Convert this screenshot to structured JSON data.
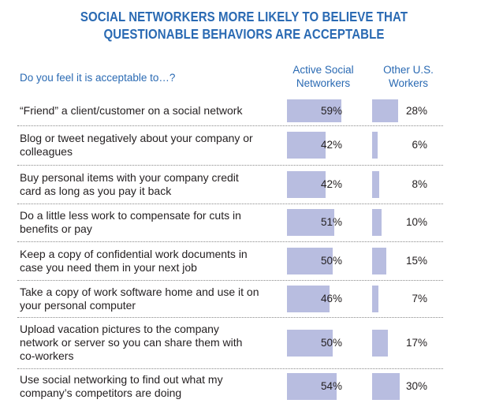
{
  "chart_data": {
    "type": "bar",
    "title": "SOCIAL NETWORKERS MORE LIKELY TO BELIEVE THAT QUESTIONABLE BEHAVIORS ARE ACCEPTABLE",
    "question_header": "Do you feel it is acceptable to…?",
    "series": [
      {
        "name": "Active Social Networkers",
        "values": [
          59,
          42,
          42,
          51,
          50,
          46,
          50,
          54
        ],
        "labels": [
          "59%",
          "42%",
          "42%",
          "51%",
          "50%",
          "46%",
          "50%",
          "54%"
        ]
      },
      {
        "name": "Other U.S. Workers",
        "values": [
          28,
          6,
          8,
          10,
          15,
          7,
          17,
          30
        ],
        "labels": [
          "28%",
          "6%",
          "8%",
          "10%",
          "15%",
          "7%",
          "17%",
          "30%"
        ]
      }
    ],
    "categories": [
      "“Friend” a client/customer on a social network",
      "Blog or tweet negatively about your company or colleagues",
      "Buy personal items with your company credit card as long as you pay it back",
      "Do a little less work to compensate for cuts in benefits or pay",
      "Keep a copy of confidential work documents in case you need them in your next job",
      "Take a copy of work software home and use it on your personal computer",
      "Upload vacation pictures to the company network or server so you can share them with co-workers",
      "Use social networking to find out what my company’s competitors are doing"
    ],
    "category_lines": [
      [
        "“Friend” a client/customer on a social network"
      ],
      [
        "Blog or tweet negatively about your company or",
        "colleagues"
      ],
      [
        "Buy personal items with your company credit",
        "card as long as you pay it back"
      ],
      [
        "Do a little less work to compensate for cuts in",
        "benefits or pay"
      ],
      [
        "Keep a copy of confidential work documents in",
        "case you need them in your next job"
      ],
      [
        "Take a copy of work software home and use it on",
        "your personal computer"
      ],
      [
        "Upload vacation pictures to the company",
        "network or server so you can share them with",
        "co-workers"
      ],
      [
        "Use social networking to find out what my",
        "company’s competitors are doing"
      ]
    ],
    "xlim": [
      0,
      100
    ],
    "colors": {
      "bar": "#b8bde0",
      "title": "#2a6ab3"
    }
  }
}
